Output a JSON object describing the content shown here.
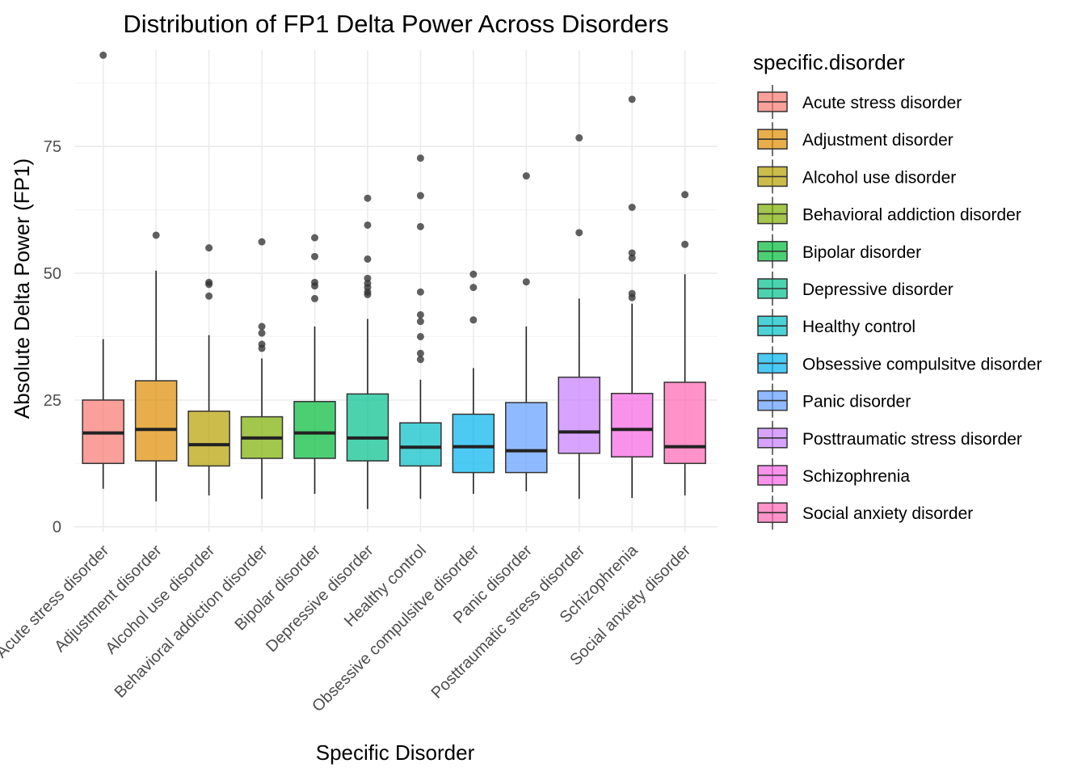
{
  "chart_data": {
    "type": "boxplot",
    "title": "Distribution of FP1 Delta Power Across Disorders",
    "xlabel": "Specific Disorder",
    "ylabel": "Absolute Delta Power (FP1)",
    "ylim": [
      -1,
      94
    ],
    "yticks": [
      0,
      25,
      50,
      75
    ],
    "grid": true,
    "legend": {
      "title": "specific.disorder",
      "position": "right"
    },
    "categories": [
      "Acute stress disorder",
      "Adjustment disorder",
      "Alcohol use disorder",
      "Behavioral addiction disorder",
      "Bipolar disorder",
      "Depressive disorder",
      "Healthy control",
      "Obsessive compulsitve disorder",
      "Panic disorder",
      "Posttraumatic stress disorder",
      "Schizophrenia",
      "Social anxiety disorder"
    ],
    "colors": [
      "#F8766D",
      "#DE8C00",
      "#B79F00",
      "#7CAE00",
      "#00BA38",
      "#00C08B",
      "#00BFC4",
      "#00B4F0",
      "#619CFF",
      "#C77CFF",
      "#F564E3",
      "#FF64B0"
    ],
    "boxes": [
      {
        "whisker_low": 7.5,
        "q1": 12.5,
        "median": 18.5,
        "q3": 25.0,
        "whisker_high": 37.0,
        "outliers": [
          93.0
        ]
      },
      {
        "whisker_low": 5.0,
        "q1": 13.0,
        "median": 19.2,
        "q3": 28.8,
        "whisker_high": 50.5,
        "outliers": [
          57.5
        ]
      },
      {
        "whisker_low": 6.2,
        "q1": 12.0,
        "median": 16.2,
        "q3": 22.8,
        "whisker_high": 37.8,
        "outliers": [
          45.5,
          47.8,
          48.2,
          55.0
        ]
      },
      {
        "whisker_low": 5.5,
        "q1": 13.5,
        "median": 17.5,
        "q3": 21.7,
        "whisker_high": 33.2,
        "outliers": [
          35.2,
          36.0,
          38.2,
          39.5,
          56.2
        ]
      },
      {
        "whisker_low": 6.5,
        "q1": 13.5,
        "median": 18.5,
        "q3": 24.7,
        "whisker_high": 39.5,
        "outliers": [
          45.0,
          47.5,
          48.2,
          53.3,
          57.0
        ]
      },
      {
        "whisker_low": 3.5,
        "q1": 13.0,
        "median": 17.5,
        "q3": 26.2,
        "whisker_high": 41.0,
        "outliers": [
          45.8,
          46.3,
          47.2,
          48.0,
          49.0,
          52.8,
          59.5,
          64.8
        ]
      },
      {
        "whisker_low": 5.5,
        "q1": 12.0,
        "median": 15.7,
        "q3": 20.5,
        "whisker_high": 29.0,
        "outliers": [
          33.0,
          34.2,
          37.5,
          40.5,
          41.8,
          46.3,
          59.2,
          65.3,
          72.7
        ]
      },
      {
        "whisker_low": 6.5,
        "q1": 10.7,
        "median": 15.8,
        "q3": 22.2,
        "whisker_high": 31.3,
        "outliers": [
          40.8,
          47.2,
          49.8
        ]
      },
      {
        "whisker_low": 7.0,
        "q1": 10.7,
        "median": 15.0,
        "q3": 24.5,
        "whisker_high": 39.5,
        "outliers": [
          48.3,
          69.2
        ]
      },
      {
        "whisker_low": 5.5,
        "q1": 14.5,
        "median": 18.7,
        "q3": 29.5,
        "whisker_high": 45.0,
        "outliers": [
          58.0,
          76.7
        ]
      },
      {
        "whisker_low": 5.7,
        "q1": 13.8,
        "median": 19.2,
        "q3": 26.3,
        "whisker_high": 44.0,
        "outliers": [
          45.2,
          46.0,
          53.0,
          54.0,
          63.0,
          84.3
        ]
      },
      {
        "whisker_low": 6.2,
        "q1": 12.5,
        "median": 15.8,
        "q3": 28.5,
        "whisker_high": 49.8,
        "outliers": [
          55.7,
          65.5
        ]
      }
    ]
  }
}
